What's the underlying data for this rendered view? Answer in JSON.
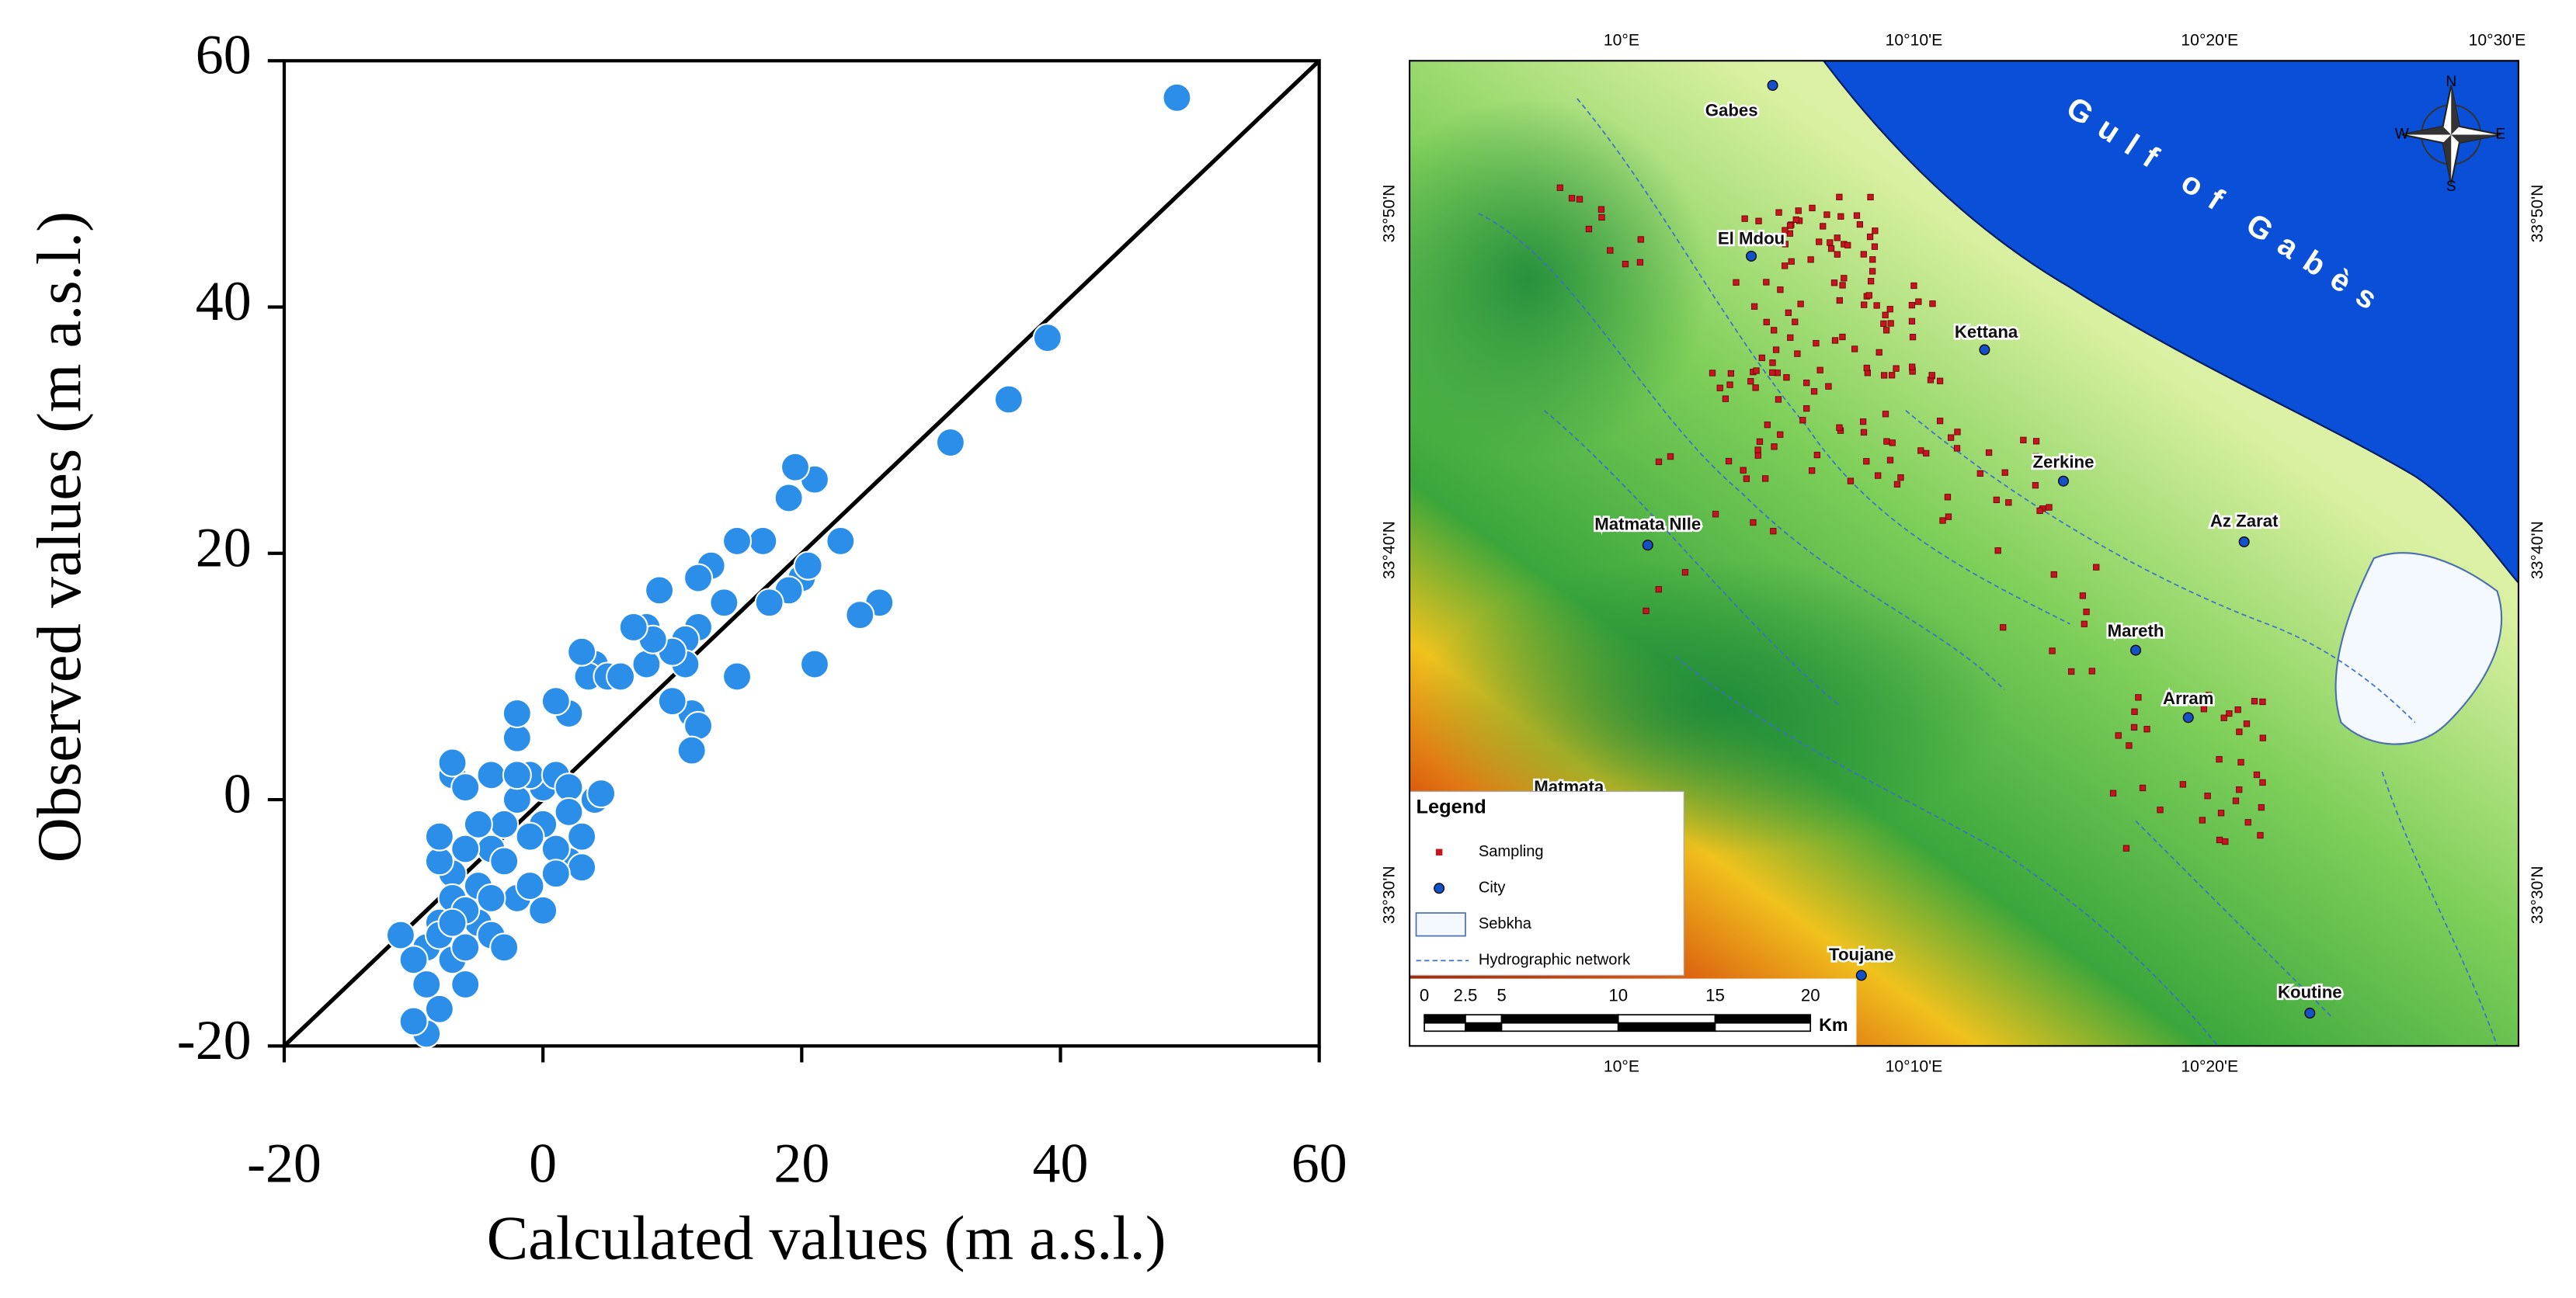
{
  "chart_data": {
    "type": "scatter",
    "xlabel": "Calculated values (m a.s.l.)",
    "ylabel": "Observed values (m a.s.l.)",
    "color": "#2b8ee8",
    "x": [
      49,
      39,
      36,
      31.5,
      26,
      24.5,
      21,
      23,
      21,
      19.5,
      19,
      20,
      20.5,
      19,
      17,
      17.5,
      15,
      15,
      14,
      13,
      12,
      12,
      11,
      11,
      11.5,
      12,
      11.5,
      10,
      10,
      9,
      8,
      8,
      8.5,
      7,
      6,
      4,
      3.5,
      3,
      2,
      1,
      -2,
      -2,
      4,
      4.5,
      3,
      2,
      3,
      1,
      0,
      0,
      -1,
      -2,
      -3,
      -4,
      -3,
      -5,
      -6,
      -7,
      -8,
      -7,
      -8,
      -9,
      -7,
      -6,
      -8,
      -9,
      -10,
      -11,
      -8,
      -6,
      -5,
      -4,
      -3,
      -2,
      -1,
      0,
      1,
      -7,
      -7,
      -6,
      -4,
      -2,
      1,
      2,
      -8,
      -5,
      -6,
      -4,
      2,
      -1,
      -10,
      -9,
      -7,
      5,
      6
    ],
    "values": [
      57,
      37.5,
      32.5,
      29,
      16,
      15,
      11,
      21,
      26,
      27,
      24.5,
      18,
      19,
      17,
      21,
      16,
      21,
      10,
      16,
      19,
      18,
      14,
      13,
      11,
      7,
      6,
      4,
      8,
      12,
      17,
      14,
      11,
      13,
      14,
      10,
      11,
      10,
      12,
      7,
      8,
      5,
      7,
      0,
      0.5,
      -3,
      -5,
      -5.5,
      -4,
      -2,
      1,
      2,
      0,
      -2,
      -4,
      -5,
      -2,
      -4,
      -6,
      -5,
      -8,
      -10,
      -12,
      -13,
      -15,
      -17,
      -19,
      -18,
      -11,
      -11,
      -12,
      -10,
      -11,
      -12,
      -8,
      -7,
      -9,
      -6,
      2,
      3,
      1,
      2,
      2,
      2,
      1,
      -3,
      -7,
      -9,
      -8,
      -1,
      -3,
      -13,
      -15,
      -10,
      10,
      10
    ],
    "xlim": [
      -20,
      60
    ],
    "xticks": [
      -20,
      0,
      20,
      40,
      60
    ],
    "ylim": [
      -20,
      60
    ],
    "yticks": [
      -20,
      0,
      20,
      40,
      60
    ]
  },
  "map": {
    "sea_label": "Gulf of Gabès",
    "lon_labels": [
      "10°E",
      "10°10'E",
      "10°20'E",
      "10°30'E"
    ],
    "lat_labels": [
      "33°50'N",
      "33°40'N",
      "33°30'N"
    ],
    "cities": [
      "Gabes",
      "El Mdou",
      "Kettana",
      "Zerkine",
      "Matmata NIle",
      "Az Zarat",
      "Mareth",
      "Arram",
      "Matmata",
      "Toujane",
      "Koutine"
    ],
    "legend": {
      "title": "Legend",
      "items": [
        "Sampling",
        "City",
        "Sebkha",
        "Hydrographic network"
      ]
    },
    "scale_labels": [
      "0",
      "2.5",
      "5",
      "10",
      "15",
      "20"
    ],
    "scale_unit": "Km",
    "compass": [
      "N",
      "S",
      "E",
      "W"
    ]
  }
}
